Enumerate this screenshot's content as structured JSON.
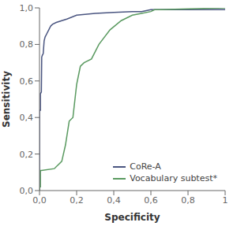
{
  "chart_data": {
    "type": "line",
    "title": "",
    "xlabel": "Specificity",
    "ylabel": "Sensitivity",
    "xlim": [
      0.0,
      1.0
    ],
    "ylim": [
      0.0,
      1.0
    ],
    "xticks": [
      {
        "value": 0.0,
        "label": "0,0"
      },
      {
        "value": 0.2,
        "label": "0,2"
      },
      {
        "value": 0.4,
        "label": "0,4"
      },
      {
        "value": 0.6,
        "label": "0,6"
      },
      {
        "value": 0.8,
        "label": "0,8"
      },
      1
    ],
    "yticks": [
      {
        "value": 0.0,
        "label": "0,0"
      },
      {
        "value": 0.2,
        "label": "0,2"
      },
      {
        "value": 0.4,
        "label": "0,4"
      },
      {
        "value": 0.6,
        "label": "0,6"
      },
      {
        "value": 0.8,
        "label": "0,8"
      },
      {
        "value": 1.0,
        "label": "1,0"
      }
    ],
    "grid": false,
    "legend": "lower right",
    "series": [
      {
        "name": "CoRe-A",
        "color": "#4a5580",
        "x": [
          0.0,
          0.0,
          0.005,
          0.005,
          0.01,
          0.012,
          0.015,
          0.02,
          0.025,
          0.03,
          0.04,
          0.05,
          0.06,
          0.07,
          0.09,
          0.12,
          0.15,
          0.2,
          0.3,
          0.4,
          0.5,
          0.55,
          0.6,
          0.65,
          1.0
        ],
        "values": [
          0.0,
          0.44,
          0.44,
          0.53,
          0.54,
          0.73,
          0.74,
          0.75,
          0.82,
          0.84,
          0.86,
          0.88,
          0.9,
          0.91,
          0.92,
          0.93,
          0.94,
          0.96,
          0.97,
          0.975,
          0.98,
          0.98,
          0.99,
          0.99,
          0.99
        ]
      },
      {
        "name": "Vocabulary subtest*",
        "color": "#5a9a60",
        "x": [
          0.0,
          0.0,
          0.005,
          0.005,
          0.01,
          0.08,
          0.09,
          0.1,
          0.12,
          0.14,
          0.16,
          0.18,
          0.2,
          0.22,
          0.24,
          0.28,
          0.32,
          0.38,
          0.44,
          0.5,
          0.55,
          0.6,
          0.62,
          0.65,
          1.0
        ],
        "values": [
          0.0,
          0.02,
          0.02,
          0.11,
          0.11,
          0.12,
          0.13,
          0.14,
          0.16,
          0.25,
          0.38,
          0.4,
          0.58,
          0.68,
          0.7,
          0.72,
          0.8,
          0.88,
          0.93,
          0.96,
          0.97,
          0.98,
          0.99,
          0.99,
          1.0
        ]
      }
    ]
  }
}
